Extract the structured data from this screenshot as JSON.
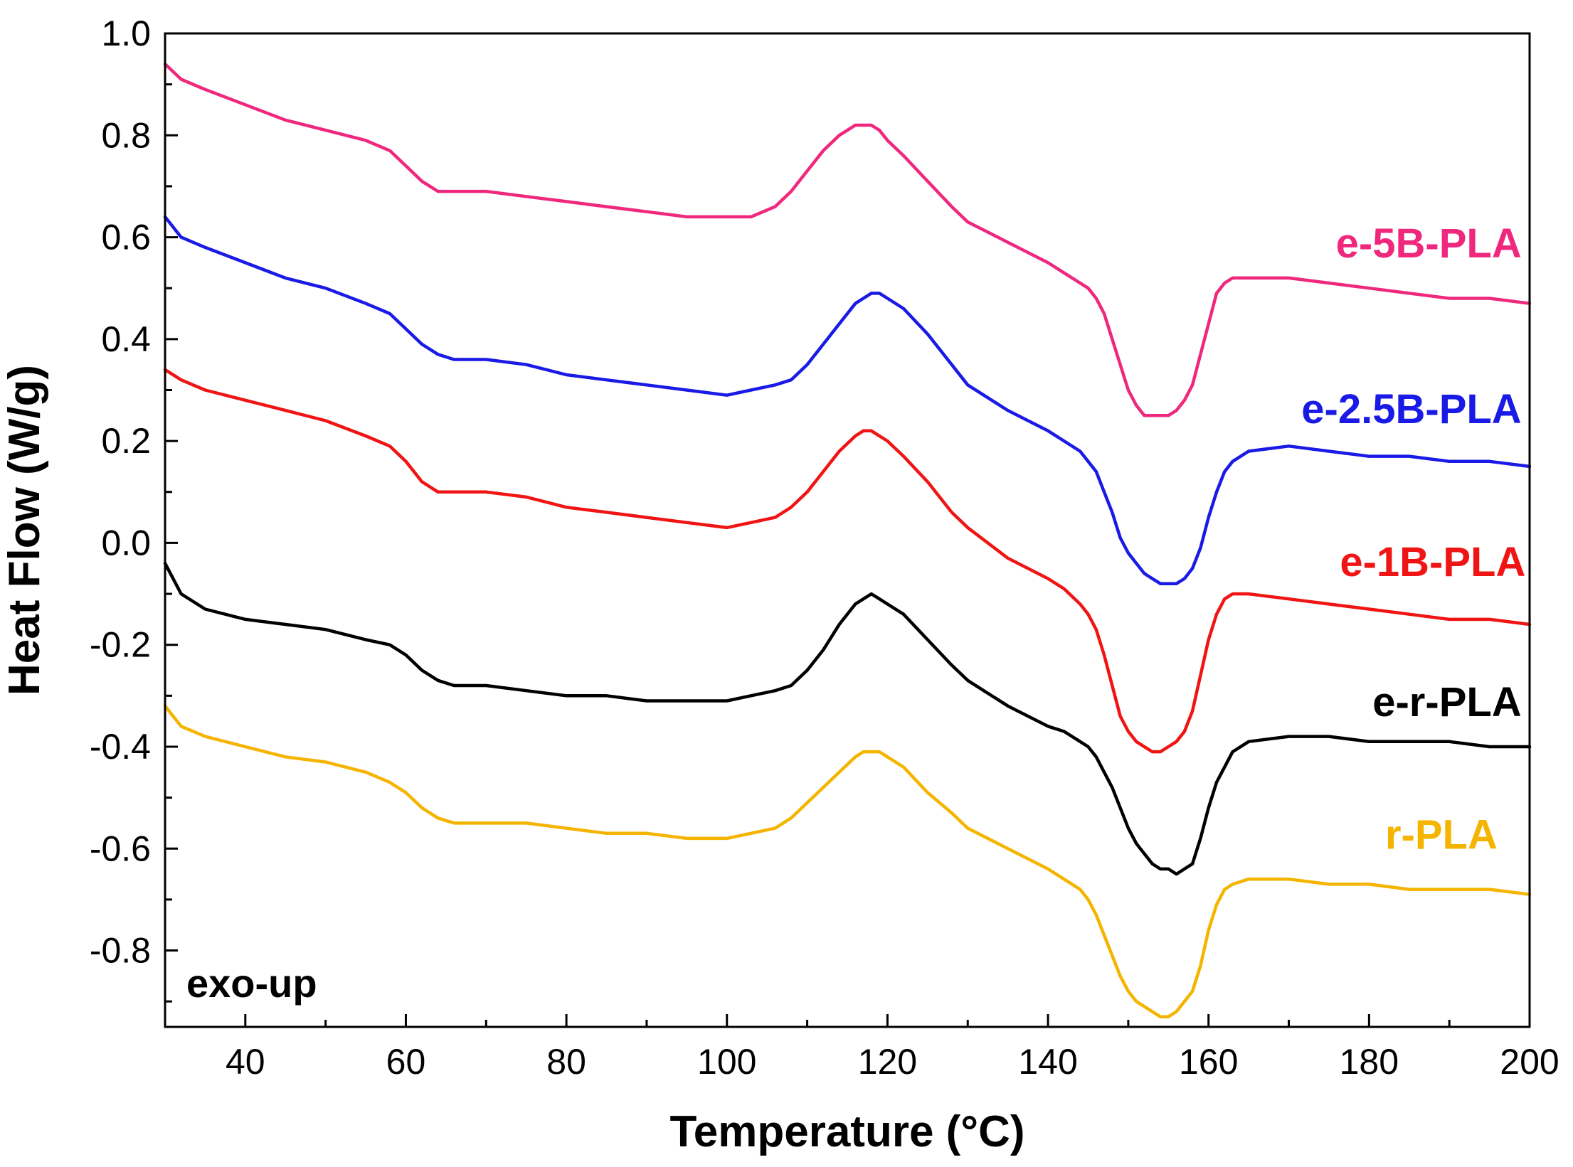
{
  "chart_data": {
    "type": "line",
    "title": "",
    "xlabel": "Temperature (°C)",
    "ylabel": "Heat Flow (W/g)",
    "xlim": [
      30,
      200
    ],
    "ylim": [
      -0.95,
      1.0
    ],
    "x_ticks": [
      "40",
      "60",
      "80",
      "100",
      "120",
      "140",
      "160",
      "180",
      "200"
    ],
    "y_ticks": [
      "1.0",
      "0.8",
      "0.6",
      "0.4",
      "0.2",
      "0.0",
      "-0.2",
      "-0.4",
      "-0.6",
      "-0.8"
    ],
    "annotation": "exo-up",
    "grid": false,
    "legend": "inline labels at right",
    "series": [
      {
        "name": "e-5B-PLA",
        "color": "#f0287d",
        "x": [
          30,
          32,
          35,
          40,
          45,
          50,
          55,
          58,
          60,
          62,
          64,
          66,
          68,
          70,
          75,
          80,
          85,
          90,
          95,
          100,
          103,
          106,
          108,
          110,
          112,
          114,
          116,
          117,
          118,
          119,
          120,
          122,
          125,
          128,
          130,
          135,
          140,
          142,
          144,
          145,
          146,
          147,
          148,
          149,
          150,
          151,
          152,
          153,
          154,
          155,
          156,
          157,
          158,
          159,
          160,
          161,
          162,
          163,
          165,
          170,
          175,
          180,
          185,
          190,
          195,
          200
        ],
        "y": [
          0.94,
          0.91,
          0.89,
          0.86,
          0.83,
          0.81,
          0.79,
          0.77,
          0.74,
          0.71,
          0.69,
          0.69,
          0.69,
          0.69,
          0.68,
          0.67,
          0.66,
          0.65,
          0.64,
          0.64,
          0.64,
          0.66,
          0.69,
          0.73,
          0.77,
          0.8,
          0.82,
          0.82,
          0.82,
          0.81,
          0.79,
          0.76,
          0.71,
          0.66,
          0.63,
          0.59,
          0.55,
          0.53,
          0.51,
          0.5,
          0.48,
          0.45,
          0.4,
          0.35,
          0.3,
          0.27,
          0.25,
          0.25,
          0.25,
          0.25,
          0.26,
          0.28,
          0.31,
          0.37,
          0.43,
          0.49,
          0.51,
          0.52,
          0.52,
          0.52,
          0.51,
          0.5,
          0.49,
          0.48,
          0.48,
          0.47
        ]
      },
      {
        "name": "e-2.5B-PLA",
        "color": "#1a1ae6",
        "x": [
          30,
          32,
          35,
          40,
          45,
          50,
          55,
          58,
          60,
          62,
          64,
          66,
          68,
          70,
          75,
          80,
          85,
          90,
          95,
          100,
          103,
          106,
          108,
          110,
          112,
          114,
          116,
          117,
          118,
          119,
          120,
          122,
          125,
          128,
          130,
          135,
          140,
          142,
          144,
          145,
          146,
          147,
          148,
          149,
          150,
          151,
          152,
          153,
          154,
          155,
          156,
          157,
          158,
          159,
          160,
          161,
          162,
          163,
          165,
          170,
          175,
          180,
          185,
          190,
          195,
          200
        ],
        "y": [
          0.64,
          0.6,
          0.58,
          0.55,
          0.52,
          0.5,
          0.47,
          0.45,
          0.42,
          0.39,
          0.37,
          0.36,
          0.36,
          0.36,
          0.35,
          0.33,
          0.32,
          0.31,
          0.3,
          0.29,
          0.3,
          0.31,
          0.32,
          0.35,
          0.39,
          0.43,
          0.47,
          0.48,
          0.49,
          0.49,
          0.48,
          0.46,
          0.41,
          0.35,
          0.31,
          0.26,
          0.22,
          0.2,
          0.18,
          0.16,
          0.14,
          0.1,
          0.06,
          0.01,
          -0.02,
          -0.04,
          -0.06,
          -0.07,
          -0.08,
          -0.08,
          -0.08,
          -0.07,
          -0.05,
          -0.01,
          0.05,
          0.1,
          0.14,
          0.16,
          0.18,
          0.19,
          0.18,
          0.17,
          0.17,
          0.16,
          0.16,
          0.15
        ]
      },
      {
        "name": "e-1B-PLA",
        "color": "#f01414",
        "x": [
          30,
          32,
          35,
          40,
          45,
          50,
          55,
          58,
          60,
          62,
          64,
          66,
          68,
          70,
          75,
          80,
          85,
          90,
          95,
          100,
          103,
          106,
          108,
          110,
          112,
          114,
          116,
          117,
          118,
          119,
          120,
          122,
          125,
          128,
          130,
          135,
          140,
          142,
          144,
          145,
          146,
          147,
          148,
          149,
          150,
          151,
          152,
          153,
          154,
          155,
          156,
          157,
          158,
          159,
          160,
          161,
          162,
          163,
          165,
          170,
          175,
          180,
          185,
          190,
          195,
          200
        ],
        "y": [
          0.34,
          0.32,
          0.3,
          0.28,
          0.26,
          0.24,
          0.21,
          0.19,
          0.16,
          0.12,
          0.1,
          0.1,
          0.1,
          0.1,
          0.09,
          0.07,
          0.06,
          0.05,
          0.04,
          0.03,
          0.04,
          0.05,
          0.07,
          0.1,
          0.14,
          0.18,
          0.21,
          0.22,
          0.22,
          0.21,
          0.2,
          0.17,
          0.12,
          0.06,
          0.03,
          -0.03,
          -0.07,
          -0.09,
          -0.12,
          -0.14,
          -0.17,
          -0.22,
          -0.28,
          -0.34,
          -0.37,
          -0.39,
          -0.4,
          -0.41,
          -0.41,
          -0.4,
          -0.39,
          -0.37,
          -0.33,
          -0.26,
          -0.19,
          -0.14,
          -0.11,
          -0.1,
          -0.1,
          -0.11,
          -0.12,
          -0.13,
          -0.14,
          -0.15,
          -0.15,
          -0.16
        ]
      },
      {
        "name": "e-r-PLA",
        "color": "#000000",
        "x": [
          30,
          32,
          35,
          40,
          45,
          50,
          55,
          58,
          60,
          62,
          64,
          66,
          68,
          70,
          75,
          80,
          85,
          90,
          95,
          100,
          103,
          106,
          108,
          110,
          112,
          114,
          116,
          117,
          118,
          119,
          120,
          122,
          125,
          128,
          130,
          135,
          140,
          142,
          144,
          145,
          146,
          147,
          148,
          149,
          150,
          151,
          152,
          153,
          154,
          155,
          156,
          157,
          158,
          159,
          160,
          161,
          162,
          163,
          165,
          170,
          175,
          180,
          185,
          190,
          195,
          200
        ],
        "y": [
          -0.04,
          -0.1,
          -0.13,
          -0.15,
          -0.16,
          -0.17,
          -0.19,
          -0.2,
          -0.22,
          -0.25,
          -0.27,
          -0.28,
          -0.28,
          -0.28,
          -0.29,
          -0.3,
          -0.3,
          -0.31,
          -0.31,
          -0.31,
          -0.3,
          -0.29,
          -0.28,
          -0.25,
          -0.21,
          -0.16,
          -0.12,
          -0.11,
          -0.1,
          -0.11,
          -0.12,
          -0.14,
          -0.19,
          -0.24,
          -0.27,
          -0.32,
          -0.36,
          -0.37,
          -0.39,
          -0.4,
          -0.42,
          -0.45,
          -0.48,
          -0.52,
          -0.56,
          -0.59,
          -0.61,
          -0.63,
          -0.64,
          -0.64,
          -0.65,
          -0.64,
          -0.63,
          -0.58,
          -0.52,
          -0.47,
          -0.44,
          -0.41,
          -0.39,
          -0.38,
          -0.38,
          -0.39,
          -0.39,
          -0.39,
          -0.4,
          -0.4
        ]
      },
      {
        "name": "r-PLA",
        "color": "#f5b400",
        "x": [
          30,
          32,
          35,
          40,
          45,
          50,
          55,
          58,
          60,
          62,
          64,
          66,
          68,
          70,
          75,
          80,
          85,
          90,
          95,
          100,
          103,
          106,
          108,
          110,
          112,
          114,
          116,
          117,
          118,
          119,
          120,
          122,
          125,
          128,
          130,
          135,
          140,
          142,
          144,
          145,
          146,
          147,
          148,
          149,
          150,
          151,
          152,
          153,
          154,
          155,
          156,
          157,
          158,
          159,
          160,
          161,
          162,
          163,
          165,
          170,
          175,
          180,
          185,
          190,
          195,
          200
        ],
        "y": [
          -0.32,
          -0.36,
          -0.38,
          -0.4,
          -0.42,
          -0.43,
          -0.45,
          -0.47,
          -0.49,
          -0.52,
          -0.54,
          -0.55,
          -0.55,
          -0.55,
          -0.55,
          -0.56,
          -0.57,
          -0.57,
          -0.58,
          -0.58,
          -0.57,
          -0.56,
          -0.54,
          -0.51,
          -0.48,
          -0.45,
          -0.42,
          -0.41,
          -0.41,
          -0.41,
          -0.42,
          -0.44,
          -0.49,
          -0.53,
          -0.56,
          -0.6,
          -0.64,
          -0.66,
          -0.68,
          -0.7,
          -0.73,
          -0.77,
          -0.81,
          -0.85,
          -0.88,
          -0.9,
          -0.91,
          -0.92,
          -0.93,
          -0.93,
          -0.92,
          -0.9,
          -0.88,
          -0.83,
          -0.76,
          -0.71,
          -0.68,
          -0.67,
          -0.66,
          -0.66,
          -0.67,
          -0.67,
          -0.68,
          -0.68,
          -0.68,
          -0.69
        ]
      }
    ]
  }
}
